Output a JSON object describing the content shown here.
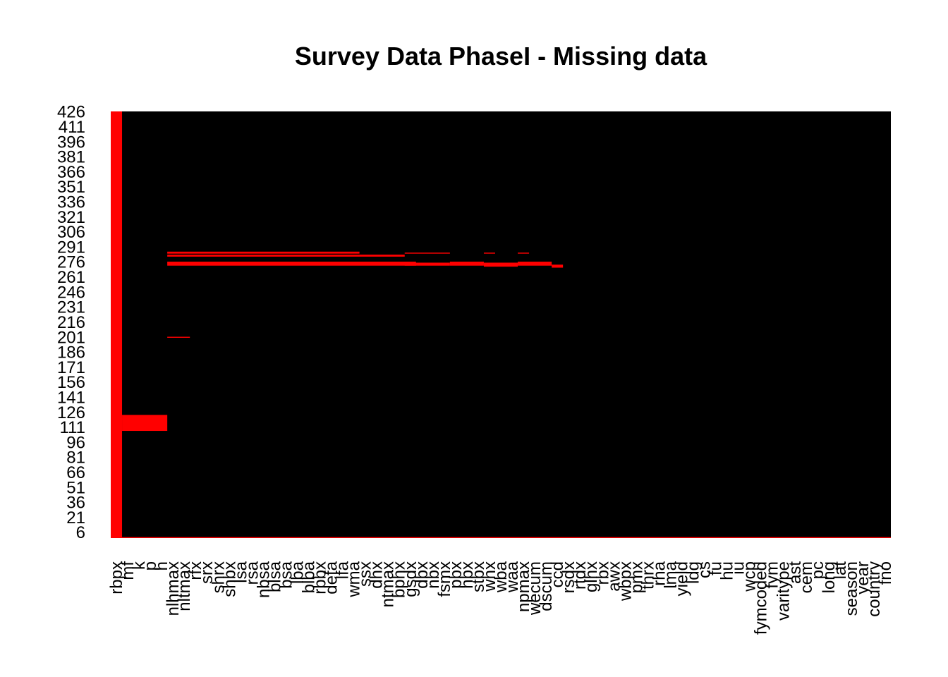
{
  "chart_data": {
    "type": "heatmap",
    "title": "Survey Data PhaseI - Missing data",
    "xlabel": "",
    "ylabel": "",
    "colors": {
      "observed": "#000000",
      "missing": "#ff0000",
      "background": "#ffffff"
    },
    "n_rows": 426,
    "variables": [
      "rbpx",
      "mf",
      "k",
      "p",
      "h",
      "nlhmax",
      "nltmax",
      "rfx",
      "srx",
      "shrx",
      "shbx",
      "lsa",
      "rsa",
      "nbsa",
      "blsa",
      "bsa",
      "lba",
      "blba",
      "rbbx",
      "defa",
      "lfa",
      "wma",
      "ssx",
      "dhx",
      "ntmax",
      "bphx",
      "gsdx",
      "dbx",
      "nbx",
      "fsmx",
      "pbx",
      "hbx",
      "stbx",
      "whx",
      "wba",
      "waa",
      "npmax",
      "wecum",
      "dscum",
      "ccd",
      "rsdx",
      "rtdx",
      "glhx",
      "rbx",
      "awx",
      "wbpx",
      "pmx",
      "thrx",
      "rha",
      "lma",
      "yield",
      "ldg",
      "cs",
      "fu",
      "hu",
      "iu",
      "wcp",
      "fymcoded",
      "fym",
      "varitype",
      "ast",
      "cem",
      "pc",
      "long",
      "lat",
      "season",
      "year",
      "country",
      "fno"
    ],
    "y_ticks": [
      6,
      21,
      36,
      51,
      66,
      81,
      96,
      111,
      126,
      141,
      156,
      171,
      186,
      201,
      216,
      231,
      246,
      261,
      276,
      291,
      306,
      321,
      336,
      351,
      366,
      381,
      396,
      411,
      426
    ],
    "missing_blocks": [
      {
        "var_from": 0,
        "var_to": 0,
        "row_from": 1,
        "row_to": 426
      },
      {
        "var_from": 1,
        "var_to": 4,
        "row_from": 108,
        "row_to": 123
      },
      {
        "var_from": 5,
        "var_to": 26,
        "row_from": 273,
        "row_to": 276
      },
      {
        "var_from": 5,
        "var_to": 21,
        "row_from": 285,
        "row_to": 286
      },
      {
        "var_from": 5,
        "var_to": 25,
        "row_from": 282,
        "row_to": 283
      },
      {
        "var_from": 5,
        "var_to": 6,
        "row_from": 201,
        "row_to": 201
      },
      {
        "var_from": 26,
        "var_to": 29,
        "row_from": 273,
        "row_to": 275
      },
      {
        "var_from": 26,
        "var_to": 29,
        "row_from": 285,
        "row_to": 285
      },
      {
        "var_from": 30,
        "var_to": 32,
        "row_from": 273,
        "row_to": 276
      },
      {
        "var_from": 33,
        "var_to": 35,
        "row_from": 272,
        "row_to": 275
      },
      {
        "var_from": 33,
        "var_to": 33,
        "row_from": 285,
        "row_to": 285
      },
      {
        "var_from": 36,
        "var_to": 36,
        "row_from": 285,
        "row_to": 285
      },
      {
        "var_from": 36,
        "var_to": 38,
        "row_from": 273,
        "row_to": 276
      },
      {
        "var_from": 39,
        "var_to": 39,
        "row_from": 271,
        "row_to": 273
      },
      {
        "var_from": 0,
        "var_to": 68,
        "row_from": 1,
        "row_to": 1
      }
    ]
  }
}
